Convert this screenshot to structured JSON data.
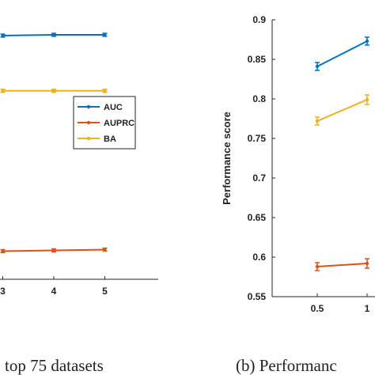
{
  "colors": {
    "AUC": "#0072BD",
    "AUPRC": "#D95319",
    "BA": "#EDB120",
    "axis": "#262626"
  },
  "captions": {
    "left": "top 75 datasets",
    "right": "(b) Performanc"
  },
  "chart_data": [
    {
      "type": "line",
      "title": "",
      "xlabel": "",
      "ylabel": "",
      "x_ticks": [
        "3",
        "4",
        "5"
      ],
      "legend": {
        "placement": "right-middle",
        "entries": [
          "AUC",
          "AUPRC",
          "BA"
        ]
      },
      "series": [
        {
          "name": "AUC",
          "x": [
            3,
            4,
            5
          ],
          "y": [
            0.872,
            0.873,
            0.873
          ],
          "err": [
            0.002,
            0.002,
            0.002
          ]
        },
        {
          "name": "AUPRC",
          "x": [
            3,
            4,
            5
          ],
          "y": [
            0.591,
            0.592,
            0.593
          ],
          "err": [
            0.002,
            0.002,
            0.002
          ]
        },
        {
          "name": "BA",
          "x": [
            3,
            4,
            5
          ],
          "y": [
            0.8,
            0.8,
            0.8
          ],
          "err": [
            0.002,
            0.002,
            0.002
          ]
        }
      ]
    },
    {
      "type": "line",
      "title": "",
      "xlabel": "",
      "ylabel": "Performance score",
      "ylim": [
        0.55,
        0.9
      ],
      "y_ticks": [
        "0.55",
        "0.6",
        "0.65",
        "0.7",
        "0.75",
        "0.8",
        "0.85",
        "0.9"
      ],
      "x_ticks": [
        "0.5",
        "1"
      ],
      "series": [
        {
          "name": "AUC",
          "x": [
            0.5,
            1
          ],
          "y": [
            0.841,
            0.873
          ],
          "err": [
            0.005,
            0.005
          ]
        },
        {
          "name": "BA",
          "x": [
            0.5,
            1
          ],
          "y": [
            0.772,
            0.799
          ],
          "err": [
            0.005,
            0.006
          ]
        },
        {
          "name": "AUPRC",
          "x": [
            0.5,
            1
          ],
          "y": [
            0.588,
            0.592
          ],
          "err": [
            0.005,
            0.006
          ]
        }
      ]
    }
  ]
}
